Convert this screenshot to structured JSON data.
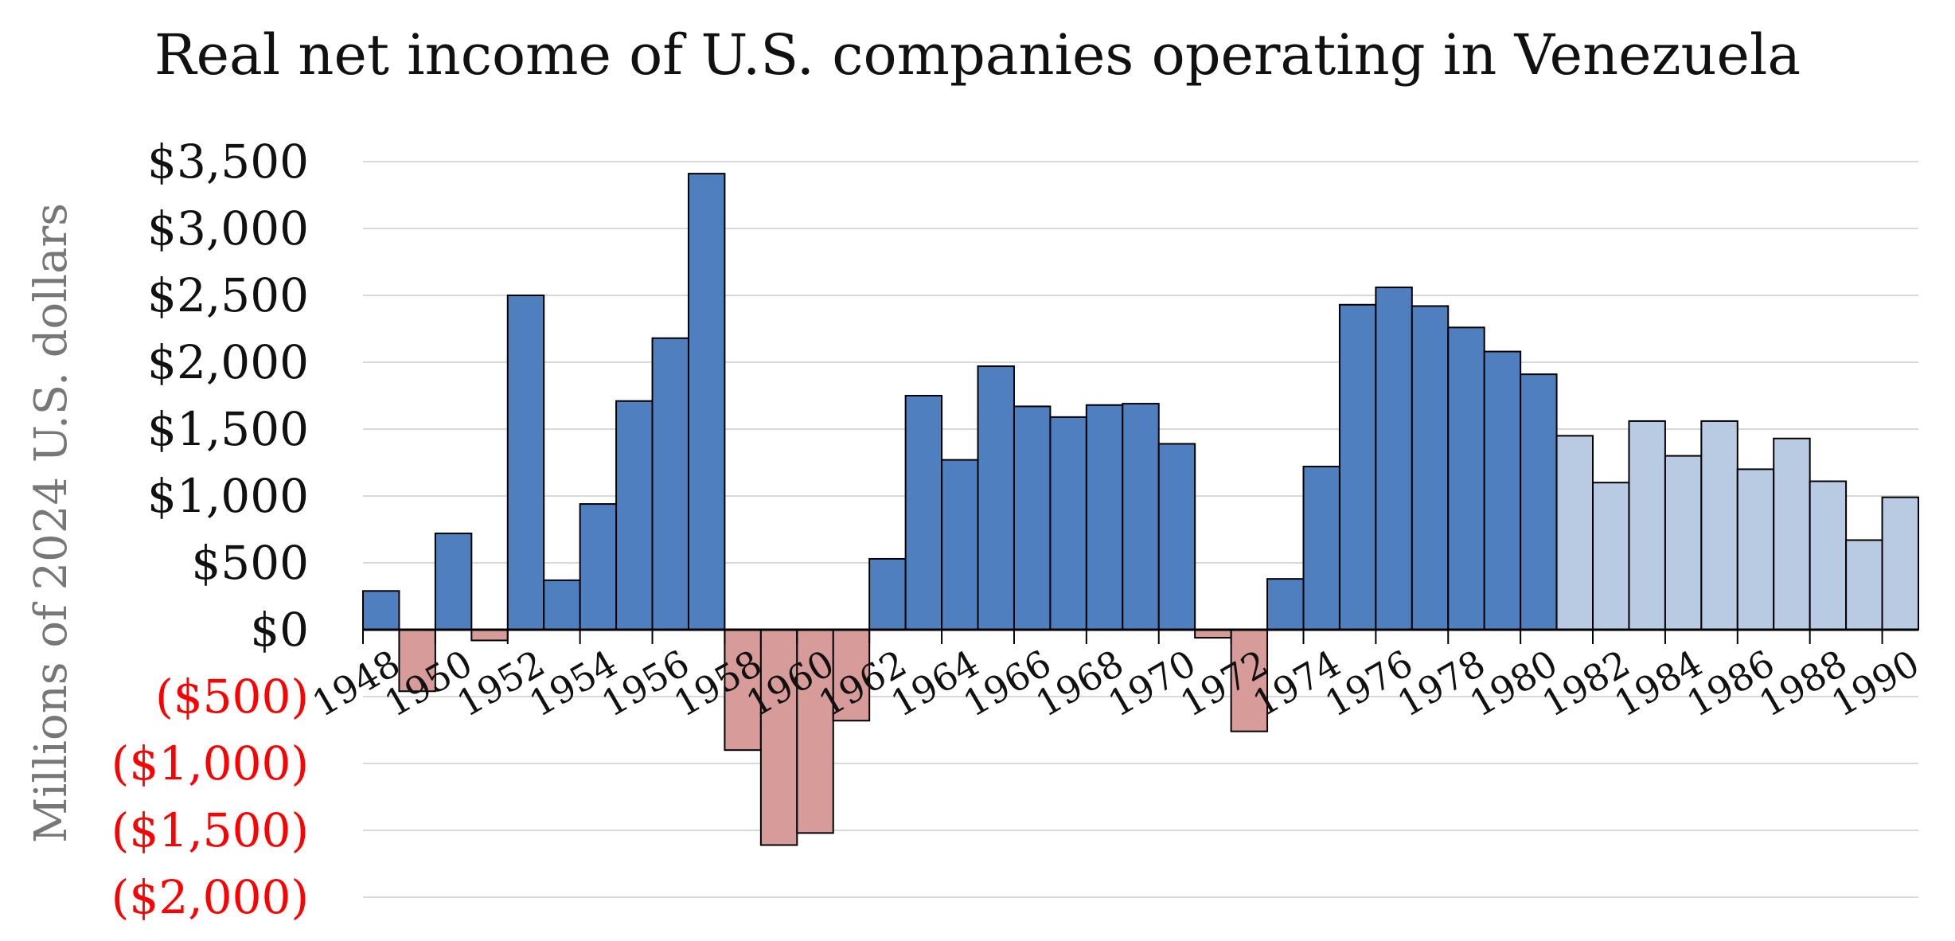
{
  "chart_data": {
    "type": "bar",
    "title": "Real net income of U.S. companies operating in Venezuela",
    "xlabel": "",
    "ylabel": "Millions of 2024 U.S. dollars",
    "ylim": [
      -2000,
      3500
    ],
    "y_ticks": [
      {
        "value": 3500,
        "label": "$3,500"
      },
      {
        "value": 3000,
        "label": "$3,000"
      },
      {
        "value": 2500,
        "label": "$2,500"
      },
      {
        "value": 2000,
        "label": "$2,000"
      },
      {
        "value": 1500,
        "label": "$1,500"
      },
      {
        "value": 1000,
        "label": "$1,000"
      },
      {
        "value": 500,
        "label": "$500"
      },
      {
        "value": 0,
        "label": "$0"
      },
      {
        "value": -500,
        "label": "($500)"
      },
      {
        "value": -1000,
        "label": "($1,000)"
      },
      {
        "value": -1500,
        "label": "($1,500)"
      },
      {
        "value": -2000,
        "label": "($2,000)"
      }
    ],
    "x_tick_labels": [
      "1948",
      "1950",
      "1952",
      "1954",
      "1956",
      "1958",
      "1960",
      "1962",
      "1964",
      "1966",
      "1968",
      "1970",
      "1972",
      "1974",
      "1976",
      "1978",
      "1980",
      "1982",
      "1984",
      "1986",
      "1988",
      "1990"
    ],
    "categories": [
      "1948",
      "1949",
      "1950",
      "1951",
      "1952",
      "1953",
      "1954",
      "1955",
      "1956",
      "1957",
      "1958",
      "1959",
      "1960",
      "1961",
      "1962",
      "1963",
      "1964",
      "1965",
      "1966",
      "1967",
      "1968",
      "1969",
      "1970",
      "1971",
      "1972",
      "1973",
      "1974",
      "1975",
      "1976",
      "1977",
      "1978",
      "1979",
      "1980",
      "1981",
      "1982",
      "1983",
      "1984",
      "1985",
      "1986",
      "1987",
      "1988",
      "1989",
      "1990"
    ],
    "values": [
      290,
      -460,
      720,
      -80,
      2500,
      370,
      940,
      1710,
      2180,
      3410,
      -900,
      -1610,
      -1520,
      -680,
      530,
      1750,
      1270,
      1970,
      1670,
      1590,
      1680,
      1690,
      1390,
      -60,
      -760,
      380,
      1220,
      2430,
      2560,
      2420,
      2260,
      2080,
      1910,
      1450,
      1100,
      1560,
      1300,
      1560,
      1200,
      1430,
      1110,
      670,
      990
    ],
    "colors": {
      "positive": "#4f7fbf",
      "negative": "#d79b99",
      "later_period": "#b9cbe3",
      "negative_tick_label": "#ff0000",
      "positive_tick_label": "#111111",
      "grid": "#d9d9d9",
      "axis": "#000000",
      "ylabel": "#777777"
    },
    "later_period_from": "1981",
    "grid": true,
    "legend": "none"
  }
}
